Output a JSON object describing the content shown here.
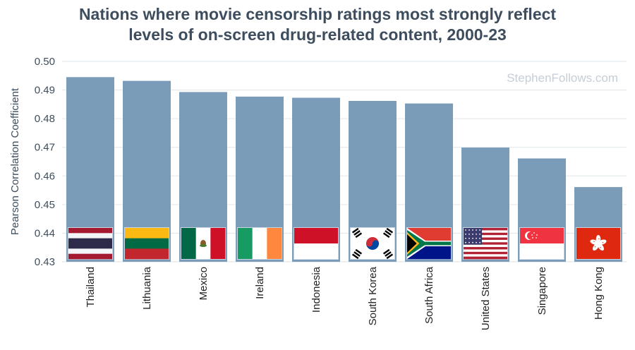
{
  "title_lines": [
    "Nations where movie censorship ratings most strongly reflect",
    "levels of on-screen drug-related content, 2000-23"
  ],
  "watermark": "StephenFollows.com",
  "colors": {
    "bar": "#7b9cb8",
    "grid": "#dfe5ea",
    "title": "#3d4d5e"
  },
  "chart_data": {
    "type": "bar",
    "title": "Nations where movie censorship ratings most strongly reflect levels of on-screen drug-related content, 2000-23",
    "xlabel": "",
    "ylabel": "Pearson Correlation Coefficient",
    "ylim": [
      0.43,
      0.5
    ],
    "yticks": [
      "0.43",
      "0.44",
      "0.45",
      "0.46",
      "0.47",
      "0.48",
      "0.49",
      "0.50"
    ],
    "grid": true,
    "categories": [
      "Thailand",
      "Lithuania",
      "Mexico",
      "Ireland",
      "Indonesia",
      "South Korea",
      "South Africa",
      "United States",
      "Singapore",
      "Hong Kong"
    ],
    "values": [
      0.4945,
      0.4932,
      0.4893,
      0.4877,
      0.4873,
      0.4862,
      0.4853,
      0.4699,
      0.4661,
      0.4561
    ],
    "flags": [
      "thailand-flag",
      "lithuania-flag",
      "mexico-flag",
      "ireland-flag",
      "indonesia-flag",
      "south-korea-flag",
      "south-africa-flag",
      "united-states-flag",
      "singapore-flag",
      "hong-kong-flag"
    ]
  }
}
